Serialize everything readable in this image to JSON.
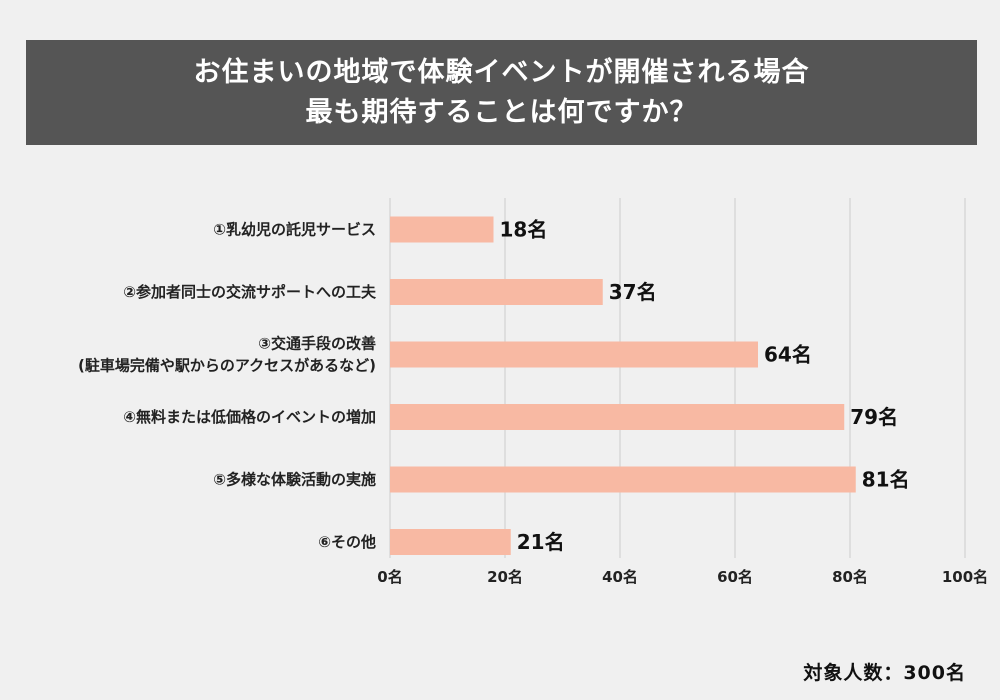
{
  "title": {
    "line1": "お住まいの地域で体験イベントが開催される場合",
    "line2": "最も期待することは何ですか？"
  },
  "footnote": "対象人数：300名",
  "colors": {
    "bar": "#f8b9a3",
    "banner": "#555555",
    "grid": "#cccccc",
    "background": "#f0f0f0"
  },
  "chart_data": {
    "type": "bar",
    "orientation": "horizontal",
    "categories": [
      [
        "①乳幼児の託児サービス"
      ],
      [
        "②参加者同士の交流サポートへの工夫"
      ],
      [
        "③交通手段の改善",
        "(駐車場完備や駅からのアクセスがあるなど)"
      ],
      [
        "④無料または低価格のイベントの増加"
      ],
      [
        "⑤多様な体験活動の実施"
      ],
      [
        "⑥その他"
      ]
    ],
    "values": [
      18,
      37,
      64,
      79,
      81,
      21
    ],
    "value_labels": [
      "18名",
      "37名",
      "64名",
      "79名",
      "81名",
      "21名"
    ],
    "xlim": [
      0,
      100
    ],
    "xticks": [
      0,
      20,
      40,
      60,
      80,
      100
    ],
    "xtick_labels": [
      "0名",
      "20名",
      "40名",
      "60名",
      "80名",
      "100名"
    ],
    "grid": true
  }
}
